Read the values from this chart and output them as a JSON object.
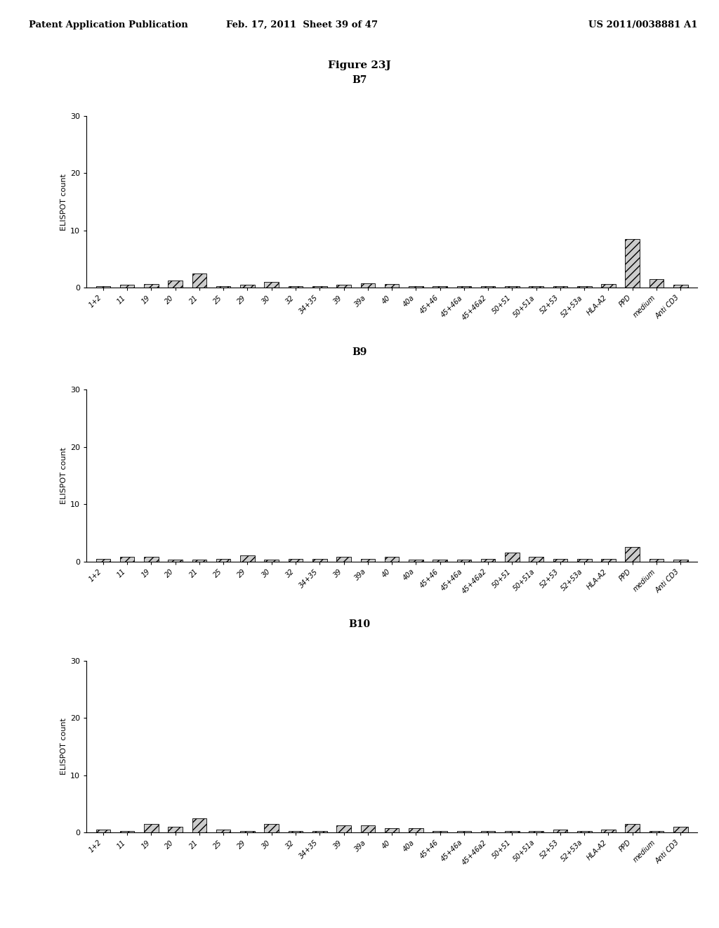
{
  "figure_title": "Figure 23J",
  "background_color": "#ffffff",
  "panels": [
    {
      "subtitle": "B7",
      "ylabel": "ELISPOT count",
      "ylim": [
        0,
        30
      ],
      "yticks": [
        0,
        10,
        20,
        30
      ],
      "categories": [
        "1+2",
        "11",
        "19",
        "20",
        "21",
        "25",
        "29",
        "30",
        "32",
        "34+35",
        "39",
        "39a",
        "40",
        "40a",
        "45+46",
        "45+46a",
        "45+46a2",
        "50+51",
        "50+51a",
        "52+53",
        "52+53a",
        "HLA-A2",
        "PPD",
        "medium",
        "Anti CD3"
      ],
      "values": [
        0.3,
        0.5,
        0.7,
        1.2,
        2.5,
        0.3,
        0.5,
        1.0,
        0.3,
        0.3,
        0.5,
        0.8,
        0.7,
        0.3,
        0.3,
        0.3,
        0.3,
        0.3,
        0.3,
        0.3,
        0.3,
        0.7,
        8.5,
        1.5,
        0.5
      ]
    },
    {
      "subtitle": "B9",
      "ylabel": "ELISPOT count",
      "ylim": [
        0,
        30
      ],
      "yticks": [
        0,
        10,
        20,
        30
      ],
      "categories": [
        "1+2",
        "11",
        "19",
        "20",
        "21",
        "25",
        "29",
        "30",
        "32",
        "34+35",
        "39",
        "39a",
        "40",
        "40a",
        "45+46",
        "45+46a",
        "45+46a2",
        "50+51",
        "50+51a",
        "52+53",
        "52+53a",
        "HLA-A2",
        "PPD",
        "medium",
        "Anti CD3"
      ],
      "values": [
        0.5,
        0.8,
        0.8,
        0.3,
        0.3,
        0.5,
        1.0,
        0.3,
        0.5,
        0.5,
        0.8,
        0.5,
        0.8,
        0.3,
        0.3,
        0.3,
        0.5,
        1.5,
        0.8,
        0.5,
        0.5,
        0.5,
        2.5,
        0.5,
        0.3
      ]
    },
    {
      "subtitle": "B10",
      "ylabel": "ELISPOT count",
      "ylim": [
        0,
        30
      ],
      "yticks": [
        0,
        10,
        20,
        30
      ],
      "categories": [
        "1+2",
        "11",
        "19",
        "20",
        "21",
        "25",
        "29",
        "30",
        "32",
        "34+35",
        "39",
        "39a",
        "40",
        "40a",
        "45+46",
        "45+46a",
        "45+46a2",
        "50+51",
        "50+51a",
        "52+53",
        "52+53a",
        "HLA-A2",
        "PPD",
        "medium",
        "Anti CD3"
      ],
      "values": [
        0.5,
        0.3,
        1.5,
        1.0,
        2.5,
        0.5,
        0.3,
        1.5,
        0.3,
        0.3,
        1.2,
        1.2,
        0.8,
        0.8,
        0.3,
        0.3,
        0.3,
        0.3,
        0.3,
        0.5,
        0.3,
        0.5,
        1.5,
        0.3,
        1.0
      ]
    }
  ],
  "header_left": "Patent Application Publication",
  "header_center": "Feb. 17, 2011  Sheet 39 of 47",
  "header_right": "US 2011/0038881 A1",
  "bar_color": "#cccccc",
  "bar_hatch": "///",
  "bar_width": 0.6
}
